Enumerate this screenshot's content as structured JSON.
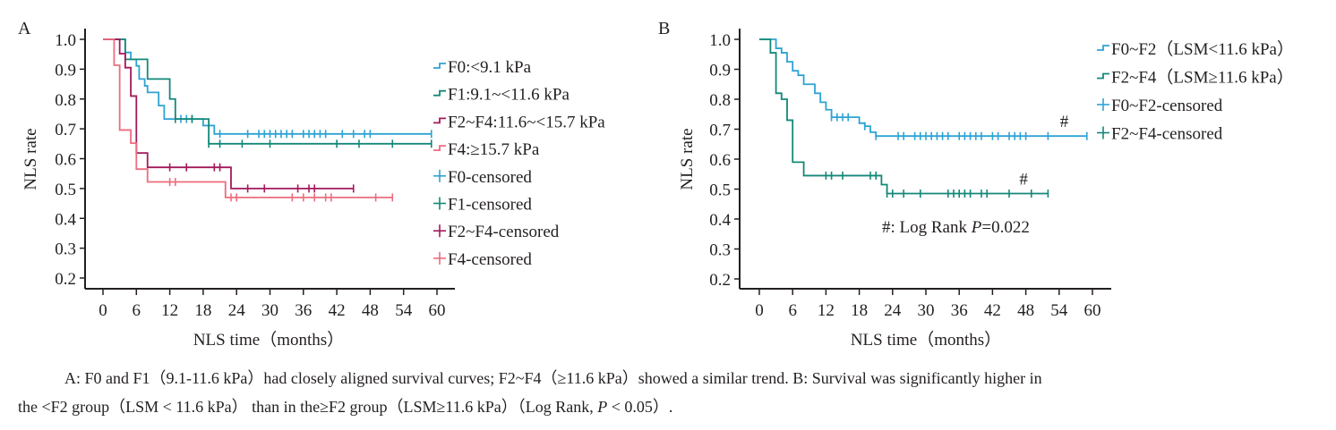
{
  "chart_data": [
    {
      "panel": "A",
      "type": "line",
      "subtype": "kaplan-meier",
      "xlabel": "NLS time（months）",
      "ylabel": "NLS rate",
      "xlim": [
        0,
        60
      ],
      "ylim": [
        0.2,
        1.0
      ],
      "xticks": [
        0,
        6,
        12,
        18,
        24,
        30,
        36,
        42,
        48,
        54,
        60
      ],
      "yticks": [
        "1.0",
        "0.9",
        "0.8",
        "0.7",
        "0.6",
        "0.5",
        "0.4",
        "0.3",
        "0.2"
      ],
      "ytick_values": [
        1.0,
        0.9,
        0.8,
        0.7,
        0.6,
        0.5,
        0.4,
        0.3,
        0.2
      ],
      "legend_position": "right",
      "legend": [
        {
          "label": "F0:<9.1 kPa",
          "kind": "step",
          "series": 0
        },
        {
          "label": "F1:9.1~<11.6 kPa",
          "kind": "step",
          "series": 1
        },
        {
          "label": "F2~F4:11.6~<15.7 kPa",
          "kind": "step",
          "series": 2
        },
        {
          "label": "F4:≥15.7 kPa",
          "kind": "step",
          "series": 3
        },
        {
          "label": "F0-censored",
          "kind": "censor",
          "series": 0
        },
        {
          "label": "F1-censored",
          "kind": "censor",
          "series": 1
        },
        {
          "label": "F2~F4-censored",
          "kind": "censor",
          "series": 2
        },
        {
          "label": "F4-censored",
          "kind": "censor",
          "series": 3
        }
      ],
      "series": [
        {
          "name": "F0",
          "color": "#2ea3d3",
          "steps": [
            [
              0,
              1.0
            ],
            [
              4,
              0.956
            ],
            [
              5,
              0.933
            ],
            [
              6,
              0.911
            ],
            [
              6.5,
              0.867
            ],
            [
              7.5,
              0.844
            ],
            [
              8,
              0.822
            ],
            [
              10,
              0.778
            ],
            [
              11,
              0.733
            ],
            [
              18,
              0.711
            ],
            [
              20,
              0.683
            ],
            [
              59,
              0.683
            ]
          ],
          "censored": [
            [
              14,
              0.733
            ],
            [
              15,
              0.733
            ],
            [
              16,
              0.733
            ],
            [
              21,
              0.683
            ],
            [
              26,
              0.683
            ],
            [
              28,
              0.683
            ],
            [
              29,
              0.683
            ],
            [
              30,
              0.683
            ],
            [
              31,
              0.683
            ],
            [
              32,
              0.683
            ],
            [
              33,
              0.683
            ],
            [
              34,
              0.683
            ],
            [
              36,
              0.683
            ],
            [
              37,
              0.683
            ],
            [
              38,
              0.683
            ],
            [
              39,
              0.683
            ],
            [
              40,
              0.683
            ],
            [
              43,
              0.683
            ],
            [
              45,
              0.683
            ],
            [
              47,
              0.683
            ],
            [
              48,
              0.683
            ],
            [
              59,
              0.683
            ]
          ]
        },
        {
          "name": "F1",
          "color": "#14887a",
          "steps": [
            [
              0,
              1.0
            ],
            [
              4,
              0.933
            ],
            [
              8,
              0.867
            ],
            [
              12,
              0.8
            ],
            [
              13,
              0.733
            ],
            [
              19,
              0.65
            ],
            [
              59,
              0.65
            ]
          ],
          "censored": [
            [
              13,
              0.733
            ],
            [
              16,
              0.733
            ],
            [
              19,
              0.65
            ],
            [
              21,
              0.65
            ],
            [
              25,
              0.65
            ],
            [
              30,
              0.65
            ],
            [
              42,
              0.65
            ],
            [
              46,
              0.65
            ],
            [
              52,
              0.65
            ],
            [
              59,
              0.65
            ]
          ]
        },
        {
          "name": "F2~F4",
          "color": "#a3195b",
          "steps": [
            [
              0,
              1.0
            ],
            [
              3,
              0.952
            ],
            [
              4,
              0.905
            ],
            [
              5,
              0.81
            ],
            [
              6,
              0.619
            ],
            [
              8,
              0.571
            ],
            [
              23,
              0.5
            ],
            [
              45,
              0.5
            ]
          ],
          "censored": [
            [
              12,
              0.571
            ],
            [
              15,
              0.571
            ],
            [
              20,
              0.571
            ],
            [
              21,
              0.571
            ],
            [
              26,
              0.5
            ],
            [
              29,
              0.5
            ],
            [
              35,
              0.5
            ],
            [
              37,
              0.5
            ],
            [
              38,
              0.5
            ],
            [
              45,
              0.5
            ]
          ]
        },
        {
          "name": "F4",
          "color": "#ec6d7f",
          "steps": [
            [
              0,
              1.0
            ],
            [
              2,
              0.913
            ],
            [
              3,
              0.696
            ],
            [
              5,
              0.652
            ],
            [
              6,
              0.565
            ],
            [
              8,
              0.522
            ],
            [
              22,
              0.47
            ],
            [
              52,
              0.47
            ]
          ],
          "censored": [
            [
              12,
              0.522
            ],
            [
              13,
              0.522
            ],
            [
              23,
              0.47
            ],
            [
              24,
              0.47
            ],
            [
              34,
              0.47
            ],
            [
              36,
              0.47
            ],
            [
              38,
              0.47
            ],
            [
              40,
              0.47
            ],
            [
              41,
              0.47
            ],
            [
              49,
              0.47
            ],
            [
              52,
              0.47
            ]
          ]
        }
      ]
    },
    {
      "panel": "B",
      "type": "line",
      "subtype": "kaplan-meier",
      "xlabel": "NLS time（months）",
      "ylabel": "NLS rate",
      "xlim": [
        0,
        60
      ],
      "ylim": [
        0.2,
        1.0
      ],
      "xticks": [
        0,
        6,
        12,
        18,
        24,
        30,
        36,
        42,
        48,
        54,
        60
      ],
      "yticks": [
        "1.0",
        "0.9",
        "0.8",
        "0.7",
        "0.6",
        "0.5",
        "0.4",
        "0.3",
        "0.2"
      ],
      "ytick_values": [
        1.0,
        0.9,
        0.8,
        0.7,
        0.6,
        0.5,
        0.4,
        0.3,
        0.2
      ],
      "legend_position": "top-right",
      "annotation": {
        "prefix": "#: Log Rank ",
        "p_symbol": "P",
        "p_value": "=0.022"
      },
      "marker_symbol": "#",
      "legend": [
        {
          "label": "F0~F2（LSM<11.6 kPa）",
          "kind": "step",
          "series": 0
        },
        {
          "label": "F2~F4（LSM≥11.6 kPa）",
          "kind": "step",
          "series": 1
        },
        {
          "label": "F0~F2-censored",
          "kind": "censor",
          "series": 0
        },
        {
          "label": "F2~F4-censored",
          "kind": "censor",
          "series": 1
        }
      ],
      "series": [
        {
          "name": "F0~F2",
          "color": "#2ea3d3",
          "steps": [
            [
              0,
              1.0
            ],
            [
              3,
              0.97
            ],
            [
              4,
              0.955
            ],
            [
              5,
              0.925
            ],
            [
              6,
              0.895
            ],
            [
              7,
              0.88
            ],
            [
              8,
              0.85
            ],
            [
              10,
              0.82
            ],
            [
              11,
              0.79
            ],
            [
              12,
              0.765
            ],
            [
              13,
              0.74
            ],
            [
              18,
              0.72
            ],
            [
              19,
              0.71
            ],
            [
              20,
              0.69
            ],
            [
              21,
              0.677
            ],
            [
              59,
              0.677
            ]
          ],
          "censored": [
            [
              13,
              0.74
            ],
            [
              14,
              0.74
            ],
            [
              15,
              0.74
            ],
            [
              16,
              0.74
            ],
            [
              19,
              0.71
            ],
            [
              21,
              0.677
            ],
            [
              25,
              0.677
            ],
            [
              26,
              0.677
            ],
            [
              28,
              0.677
            ],
            [
              29,
              0.677
            ],
            [
              30,
              0.677
            ],
            [
              31,
              0.677
            ],
            [
              32,
              0.677
            ],
            [
              33,
              0.677
            ],
            [
              34,
              0.677
            ],
            [
              36,
              0.677
            ],
            [
              37,
              0.677
            ],
            [
              38,
              0.677
            ],
            [
              39,
              0.677
            ],
            [
              40,
              0.677
            ],
            [
              42,
              0.677
            ],
            [
              43,
              0.677
            ],
            [
              45,
              0.677
            ],
            [
              46,
              0.677
            ],
            [
              47,
              0.677
            ],
            [
              48,
              0.677
            ],
            [
              52,
              0.677
            ],
            [
              59,
              0.677
            ]
          ]
        },
        {
          "name": "F2~F4",
          "color": "#14887a",
          "steps": [
            [
              0,
              1.0
            ],
            [
              2,
              0.955
            ],
            [
              3,
              0.82
            ],
            [
              4,
              0.8
            ],
            [
              5,
              0.73
            ],
            [
              6,
              0.59
            ],
            [
              8,
              0.545
            ],
            [
              22,
              0.515
            ],
            [
              23,
              0.485
            ],
            [
              52,
              0.485
            ]
          ],
          "censored": [
            [
              12,
              0.545
            ],
            [
              13,
              0.545
            ],
            [
              15,
              0.545
            ],
            [
              20,
              0.545
            ],
            [
              21,
              0.545
            ],
            [
              23,
              0.485
            ],
            [
              24,
              0.485
            ],
            [
              26,
              0.485
            ],
            [
              29,
              0.485
            ],
            [
              34,
              0.485
            ],
            [
              35,
              0.485
            ],
            [
              36,
              0.485
            ],
            [
              37,
              0.485
            ],
            [
              38,
              0.485
            ],
            [
              40,
              0.485
            ],
            [
              41,
              0.485
            ],
            [
              45,
              0.485
            ],
            [
              49,
              0.485
            ],
            [
              52,
              0.485
            ]
          ]
        }
      ]
    }
  ],
  "caption": {
    "line1": "A: F0 and F1（9.1-11.6 kPa）had closely aligned survival curves; F2~F4（≥11.6 kPa）showed a similar trend. B: Survival was significantly higher in",
    "line2_pre": "the <F2 group（LSM < 11.6 kPa） than in the≥F2 group（LSM≥11.6 kPa）（Log Rank, ",
    "line2_p": "P",
    "line2_post": " < 0.05）."
  }
}
